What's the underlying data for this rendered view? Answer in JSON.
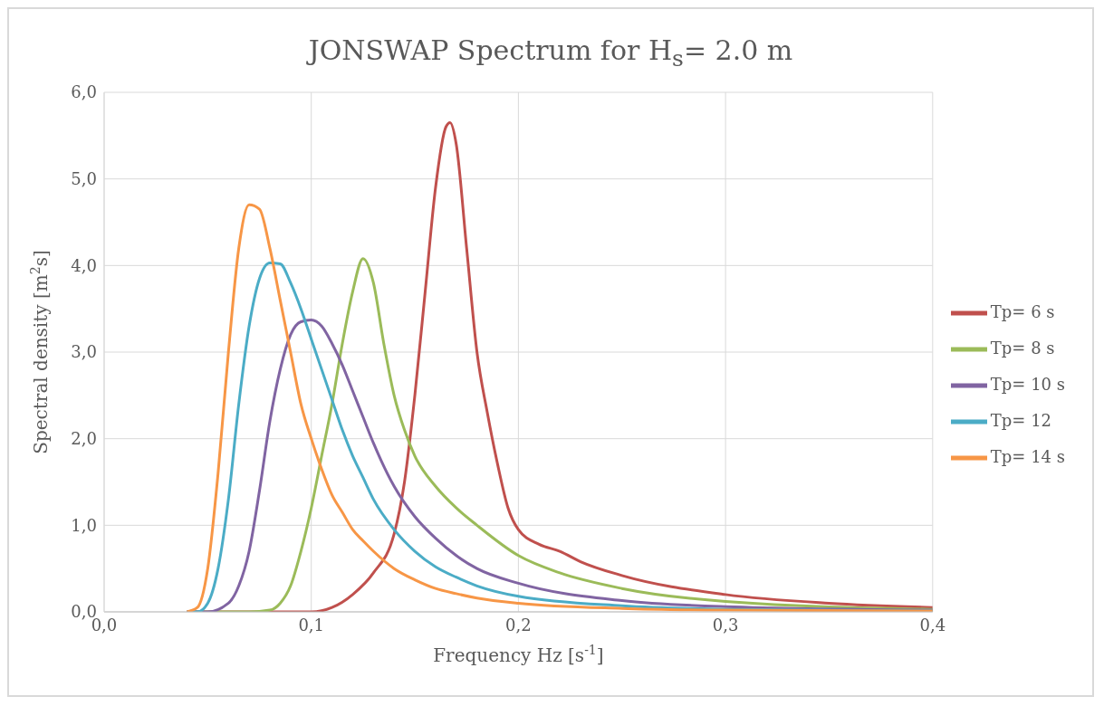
{
  "chart_data": {
    "type": "line",
    "title": "JONSWAP Spectrum for H$_{s}$= 2.0 m",
    "xlabel": "Frequency Hz [s$^{-1}$]",
    "ylabel": "Spectral density [m$^{2}$s]",
    "xlim": [
      0,
      0.4
    ],
    "xticks": [
      {
        "value": 0,
        "label": "0,0"
      },
      {
        "value": 0.1,
        "label": "0,1"
      },
      {
        "value": 0.2,
        "label": "0,2"
      },
      {
        "value": 0.3,
        "label": "0,3"
      },
      {
        "value": 0.4,
        "label": "0,4"
      }
    ],
    "ylim": [
      0,
      6
    ],
    "yticks": [
      {
        "value": 0,
        "label": "0,0"
      },
      {
        "value": 1,
        "label": "1,0"
      },
      {
        "value": 2,
        "label": "2,0"
      },
      {
        "value": 3,
        "label": "3,0"
      },
      {
        "value": 4,
        "label": "4,0"
      },
      {
        "value": 5,
        "label": "5,0"
      },
      {
        "value": 6,
        "label": "6,0"
      }
    ],
    "grid": true,
    "legend": "right",
    "marker": "none",
    "line_style": "solid",
    "series": [
      {
        "name": "Tp= 6 s",
        "color": "#c0504d",
        "x": [
          0.04,
          0.1,
          0.11,
          0.12,
          0.13,
          0.14,
          0.145,
          0.15,
          0.155,
          0.16,
          0.165,
          0.167,
          0.17,
          0.175,
          0.18,
          0.185,
          0.19,
          0.195,
          0.2,
          0.21,
          0.22,
          0.23,
          0.25,
          0.3,
          0.35,
          0.4
        ],
        "values": [
          0,
          0,
          0.05,
          0.2,
          0.45,
          0.9,
          1.5,
          2.5,
          3.7,
          4.9,
          5.6,
          5.65,
          5.4,
          4.2,
          3.0,
          2.3,
          1.7,
          1.2,
          0.95,
          0.78,
          0.7,
          0.58,
          0.42,
          0.2,
          0.1,
          0.05
        ]
      },
      {
        "name": "Tp= 8 s",
        "color": "#9bbb59",
        "x": [
          0.04,
          0.07,
          0.08,
          0.085,
          0.09,
          0.095,
          0.1,
          0.105,
          0.11,
          0.115,
          0.12,
          0.125,
          0.13,
          0.135,
          0.14,
          0.145,
          0.15,
          0.16,
          0.17,
          0.18,
          0.2,
          0.22,
          0.25,
          0.3,
          0.4
        ],
        "values": [
          0,
          0,
          0.02,
          0.1,
          0.3,
          0.7,
          1.2,
          1.8,
          2.4,
          3.1,
          3.7,
          4.08,
          3.8,
          3.1,
          2.5,
          2.1,
          1.8,
          1.45,
          1.2,
          1.0,
          0.65,
          0.45,
          0.27,
          0.12,
          0.03
        ]
      },
      {
        "name": "Tp= 10 s",
        "color": "#8064a2",
        "x": [
          0.04,
          0.05,
          0.06,
          0.065,
          0.07,
          0.075,
          0.08,
          0.085,
          0.09,
          0.095,
          0.1,
          0.105,
          0.11,
          0.115,
          0.12,
          0.125,
          0.13,
          0.14,
          0.15,
          0.16,
          0.17,
          0.18,
          0.2,
          0.25,
          0.3,
          0.4
        ],
        "values": [
          0,
          0,
          0.1,
          0.3,
          0.7,
          1.4,
          2.2,
          2.8,
          3.2,
          3.35,
          3.37,
          3.3,
          3.1,
          2.85,
          2.55,
          2.25,
          1.95,
          1.45,
          1.1,
          0.85,
          0.65,
          0.5,
          0.33,
          0.13,
          0.06,
          0.02
        ]
      },
      {
        "name": "Tp= 12",
        "color": "#4bacc6",
        "x": [
          0.04,
          0.045,
          0.05,
          0.055,
          0.06,
          0.065,
          0.07,
          0.075,
          0.08,
          0.085,
          0.09,
          0.095,
          0.1,
          0.105,
          0.11,
          0.115,
          0.12,
          0.125,
          0.13,
          0.14,
          0.15,
          0.16,
          0.17,
          0.18,
          0.2,
          0.25,
          0.3,
          0.4
        ],
        "values": [
          0,
          0,
          0.1,
          0.5,
          1.3,
          2.4,
          3.3,
          3.85,
          4.03,
          4.02,
          3.8,
          3.5,
          3.15,
          2.8,
          2.45,
          2.1,
          1.8,
          1.55,
          1.3,
          0.95,
          0.7,
          0.52,
          0.4,
          0.3,
          0.18,
          0.07,
          0.03,
          0.01
        ]
      },
      {
        "name": "Tp= 14 s",
        "color": "#f79646",
        "x": [
          0.04,
          0.045,
          0.05,
          0.055,
          0.06,
          0.065,
          0.07,
          0.075,
          0.08,
          0.085,
          0.09,
          0.095,
          0.1,
          0.105,
          0.11,
          0.115,
          0.12,
          0.125,
          0.13,
          0.14,
          0.15,
          0.16,
          0.17,
          0.18,
          0.2,
          0.25,
          0.3,
          0.4
        ],
        "values": [
          0,
          0.05,
          0.5,
          1.6,
          3.0,
          4.2,
          4.7,
          4.65,
          4.2,
          3.6,
          3.0,
          2.4,
          2.0,
          1.65,
          1.35,
          1.15,
          0.95,
          0.82,
          0.7,
          0.5,
          0.37,
          0.27,
          0.21,
          0.16,
          0.1,
          0.04,
          0.02,
          0.01
        ]
      }
    ]
  }
}
